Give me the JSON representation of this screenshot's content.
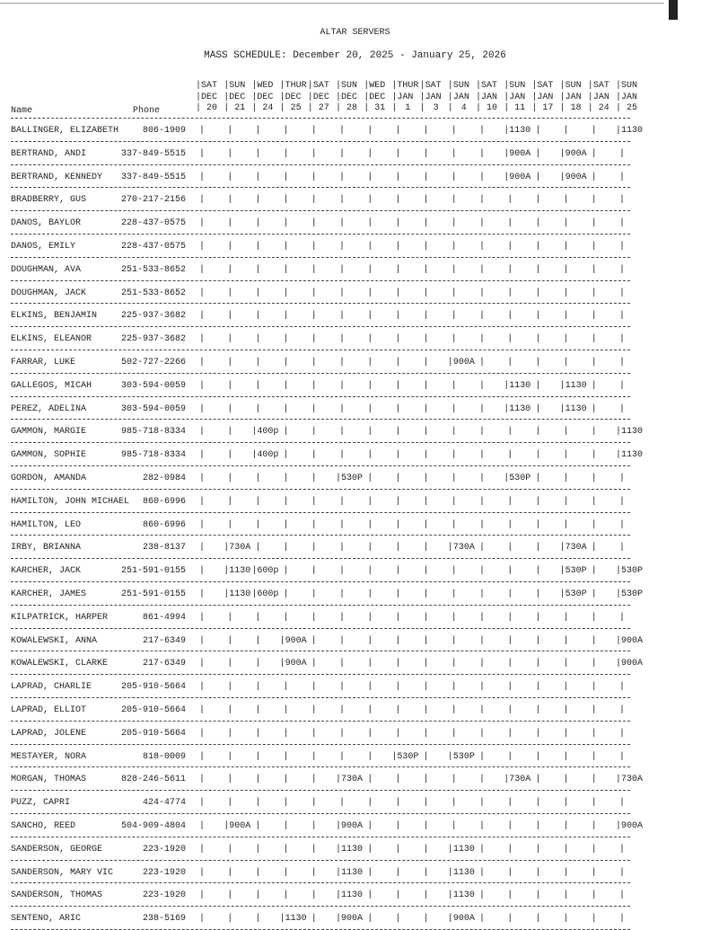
{
  "title": "ALTAR SERVERS",
  "subtitle": "MASS SCHEDULE:  December 20, 2025 - January 25, 2026",
  "headers": {
    "name": "Name",
    "phone": "Phone"
  },
  "columns": [
    {
      "day": "SAT",
      "month": "DEC",
      "date": "20"
    },
    {
      "day": "SUN",
      "month": "DEC",
      "date": "21"
    },
    {
      "day": "WED",
      "month": "DEC",
      "date": "24"
    },
    {
      "day": "THUR",
      "month": "DEC",
      "date": "25"
    },
    {
      "day": "SAT",
      "month": "DEC",
      "date": "27"
    },
    {
      "day": "SUN",
      "month": "DEC",
      "date": "28"
    },
    {
      "day": "WED",
      "month": "DEC",
      "date": "31"
    },
    {
      "day": "THUR",
      "month": "JAN",
      "date": "1"
    },
    {
      "day": "SAT",
      "month": "JAN",
      "date": "3"
    },
    {
      "day": "SUN",
      "month": "JAN",
      "date": "4"
    },
    {
      "day": "SAT",
      "month": "JAN",
      "date": "10"
    },
    {
      "day": "SUN",
      "month": "JAN",
      "date": "11"
    },
    {
      "day": "SAT",
      "month": "JAN",
      "date": "17"
    },
    {
      "day": "SUN",
      "month": "JAN",
      "date": "18"
    },
    {
      "day": "SAT",
      "month": "JAN",
      "date": "24"
    },
    {
      "day": "SUN",
      "month": "JAN",
      "date": "25"
    }
  ],
  "rows": [
    {
      "name": "BALLINGER, ELIZABETH",
      "phone": "806-1909",
      "cells": [
        "",
        "",
        "",
        "",
        "",
        "",
        "",
        "",
        "",
        "",
        "",
        "1130",
        "",
        "",
        "",
        "1130"
      ]
    },
    {
      "name": "BERTRAND, ANDI",
      "phone": "337-849-5515",
      "cells": [
        "",
        "",
        "",
        "",
        "",
        "",
        "",
        "",
        "",
        "",
        "",
        "900A",
        "",
        "900A",
        "",
        ""
      ]
    },
    {
      "name": "BERTRAND, KENNEDY",
      "phone": "337-849-5515",
      "cells": [
        "",
        "",
        "",
        "",
        "",
        "",
        "",
        "",
        "",
        "",
        "",
        "900A",
        "",
        "900A",
        "",
        ""
      ]
    },
    {
      "name": "BRADBERRY, GUS",
      "phone": "270-217-2156",
      "cells": [
        "",
        "",
        "",
        "",
        "",
        "",
        "",
        "",
        "",
        "",
        "",
        "",
        "",
        "",
        "",
        ""
      ]
    },
    {
      "name": "DANOS, BAYLOR",
      "phone": "228-437-0575",
      "cells": [
        "",
        "",
        "",
        "",
        "",
        "",
        "",
        "",
        "",
        "",
        "",
        "",
        "",
        "",
        "",
        ""
      ]
    },
    {
      "name": "DANOS, EMILY",
      "phone": "228-437-0575",
      "cells": [
        "",
        "",
        "",
        "",
        "",
        "",
        "",
        "",
        "",
        "",
        "",
        "",
        "",
        "",
        "",
        ""
      ]
    },
    {
      "name": "DOUGHMAN, AVA",
      "phone": "251-533-8652",
      "cells": [
        "",
        "",
        "",
        "",
        "",
        "",
        "",
        "",
        "",
        "",
        "",
        "",
        "",
        "",
        "",
        ""
      ]
    },
    {
      "name": "DOUGHMAN, JACK",
      "phone": "251-533-8652",
      "cells": [
        "",
        "",
        "",
        "",
        "",
        "",
        "",
        "",
        "",
        "",
        "",
        "",
        "",
        "",
        "",
        ""
      ]
    },
    {
      "name": "ELKINS, BENJAMIN",
      "phone": "225-937-3682",
      "cells": [
        "",
        "",
        "",
        "",
        "",
        "",
        "",
        "",
        "",
        "",
        "",
        "",
        "",
        "",
        "",
        ""
      ]
    },
    {
      "name": "ELKINS, ELEANOR",
      "phone": "225-937-3682",
      "cells": [
        "",
        "",
        "",
        "",
        "",
        "",
        "",
        "",
        "",
        "",
        "",
        "",
        "",
        "",
        "",
        ""
      ]
    },
    {
      "name": "FARRAR, LUKE",
      "phone": "502-727-2266",
      "cells": [
        "",
        "",
        "",
        "",
        "",
        "",
        "",
        "",
        "",
        "900A",
        "",
        "",
        "",
        "",
        "",
        ""
      ]
    },
    {
      "name": "GALLEGOS, MICAH",
      "phone": "303-594-0059",
      "cells": [
        "",
        "",
        "",
        "",
        "",
        "",
        "",
        "",
        "",
        "",
        "",
        "1130",
        "",
        "1130",
        "",
        ""
      ]
    },
    {
      "name": "PEREZ, ADELINA",
      "phone": "303-594-0059",
      "cells": [
        "",
        "",
        "",
        "",
        "",
        "",
        "",
        "",
        "",
        "",
        "",
        "1130",
        "",
        "1130",
        "",
        ""
      ]
    },
    {
      "name": "GAMMON, MARGIE",
      "phone": "985-718-8334",
      "cells": [
        "",
        "",
        "400p",
        "",
        "",
        "",
        "",
        "",
        "",
        "",
        "",
        "",
        "",
        "",
        "",
        "1130"
      ]
    },
    {
      "name": "GAMMON, SOPHIE",
      "phone": "985-718-8334",
      "cells": [
        "",
        "",
        "400p",
        "",
        "",
        "",
        "",
        "",
        "",
        "",
        "",
        "",
        "",
        "",
        "",
        "1130"
      ]
    },
    {
      "name": "GORDON, AMANDA",
      "phone": "282-0984",
      "cells": [
        "",
        "",
        "",
        "",
        "",
        "530P",
        "",
        "",
        "",
        "",
        "",
        "530P",
        "",
        "",
        "",
        ""
      ]
    },
    {
      "name": "HAMILTON, JOHN MICHAEL",
      "phone": "860-6996",
      "cells": [
        "",
        "",
        "",
        "",
        "",
        "",
        "",
        "",
        "",
        "",
        "",
        "",
        "",
        "",
        "",
        ""
      ]
    },
    {
      "name": "HAMILTON, LEO",
      "phone": "860-6996",
      "cells": [
        "",
        "",
        "",
        "",
        "",
        "",
        "",
        "",
        "",
        "",
        "",
        "",
        "",
        "",
        "",
        ""
      ]
    },
    {
      "name": "IRBY, BRIANNA",
      "phone": "238-8137",
      "cells": [
        "",
        "730A",
        "",
        "",
        "",
        "",
        "",
        "",
        "",
        "730A",
        "",
        "",
        "",
        "730A",
        "",
        ""
      ]
    },
    {
      "name": "KARCHER, JACK",
      "phone": "251-591-0155",
      "cells": [
        "",
        "1130",
        "600p",
        "",
        "",
        "",
        "",
        "",
        "",
        "",
        "",
        "",
        "",
        "530P",
        "",
        "530P"
      ]
    },
    {
      "name": "KARCHER, JAMES",
      "phone": "251-591-0155",
      "cells": [
        "",
        "1130",
        "600p",
        "",
        "",
        "",
        "",
        "",
        "",
        "",
        "",
        "",
        "",
        "530P",
        "",
        "530P"
      ]
    },
    {
      "name": "KILPATRICK, HARPER",
      "phone": "861-4994",
      "cells": [
        "",
        "",
        "",
        "",
        "",
        "",
        "",
        "",
        "",
        "",
        "",
        "",
        "",
        "",
        "",
        ""
      ]
    },
    {
      "name": "KOWALEWSKI, ANNA",
      "phone": "217-6349",
      "cells": [
        "",
        "",
        "",
        "900A",
        "",
        "",
        "",
        "",
        "",
        "",
        "",
        "",
        "",
        "",
        "",
        "900A"
      ]
    },
    {
      "name": "KOWALEWSKI, CLARKE",
      "phone": "217-6349",
      "cells": [
        "",
        "",
        "",
        "900A",
        "",
        "",
        "",
        "",
        "",
        "",
        "",
        "",
        "",
        "",
        "",
        "900A"
      ]
    },
    {
      "name": "LAPRAD, CHARLIE",
      "phone": "205-910-5664",
      "cells": [
        "",
        "",
        "",
        "",
        "",
        "",
        "",
        "",
        "",
        "",
        "",
        "",
        "",
        "",
        "",
        ""
      ]
    },
    {
      "name": "LAPRAD, ELLIOT",
      "phone": "205-910-5664",
      "cells": [
        "",
        "",
        "",
        "",
        "",
        "",
        "",
        "",
        "",
        "",
        "",
        "",
        "",
        "",
        "",
        ""
      ]
    },
    {
      "name": "LAPRAD, JOLENE",
      "phone": "205-910-5664",
      "cells": [
        "",
        "",
        "",
        "",
        "",
        "",
        "",
        "",
        "",
        "",
        "",
        "",
        "",
        "",
        "",
        ""
      ]
    },
    {
      "name": "MESTAYER, NORA",
      "phone": "818-0009",
      "cells": [
        "",
        "",
        "",
        "",
        "",
        "",
        "",
        "530P",
        "",
        "530P",
        "",
        "",
        "",
        "",
        "",
        ""
      ]
    },
    {
      "name": "MORGAN, THOMAS",
      "phone": "828-246-5611",
      "cells": [
        "",
        "",
        "",
        "",
        "",
        "730A",
        "",
        "",
        "",
        "",
        "",
        "730A",
        "",
        "",
        "",
        "730A"
      ]
    },
    {
      "name": "PUZZ, CAPRI",
      "phone": "424-4774",
      "cells": [
        "",
        "",
        "",
        "",
        "",
        "",
        "",
        "",
        "",
        "",
        "",
        "",
        "",
        "",
        "",
        ""
      ]
    },
    {
      "name": "SANCHO, REED",
      "phone": "504-909-4804",
      "cells": [
        "",
        "900A",
        "",
        "",
        "",
        "900A",
        "",
        "",
        "",
        "",
        "",
        "",
        "",
        "",
        "",
        "900A"
      ]
    },
    {
      "name": "SANDERSON, GEORGE",
      "phone": "223-1920",
      "cells": [
        "",
        "",
        "",
        "",
        "",
        "1130",
        "",
        "",
        "",
        "1130",
        "",
        "",
        "",
        "",
        "",
        ""
      ]
    },
    {
      "name": "SANDERSON, MARY VIC",
      "phone": "223-1920",
      "cells": [
        "",
        "",
        "",
        "",
        "",
        "1130",
        "",
        "",
        "",
        "1130",
        "",
        "",
        "",
        "",
        "",
        ""
      ]
    },
    {
      "name": "SANDERSON, THOMAS",
      "phone": "223-1920",
      "cells": [
        "",
        "",
        "",
        "",
        "",
        "1130",
        "",
        "",
        "",
        "1130",
        "",
        "",
        "",
        "",
        "",
        ""
      ]
    },
    {
      "name": "SENTENO, ARIC",
      "phone": "238-5169",
      "cells": [
        "",
        "",
        "",
        "1130",
        "",
        "900A",
        "",
        "",
        "",
        "900A",
        "",
        "",
        "",
        "",
        "",
        ""
      ]
    }
  ]
}
